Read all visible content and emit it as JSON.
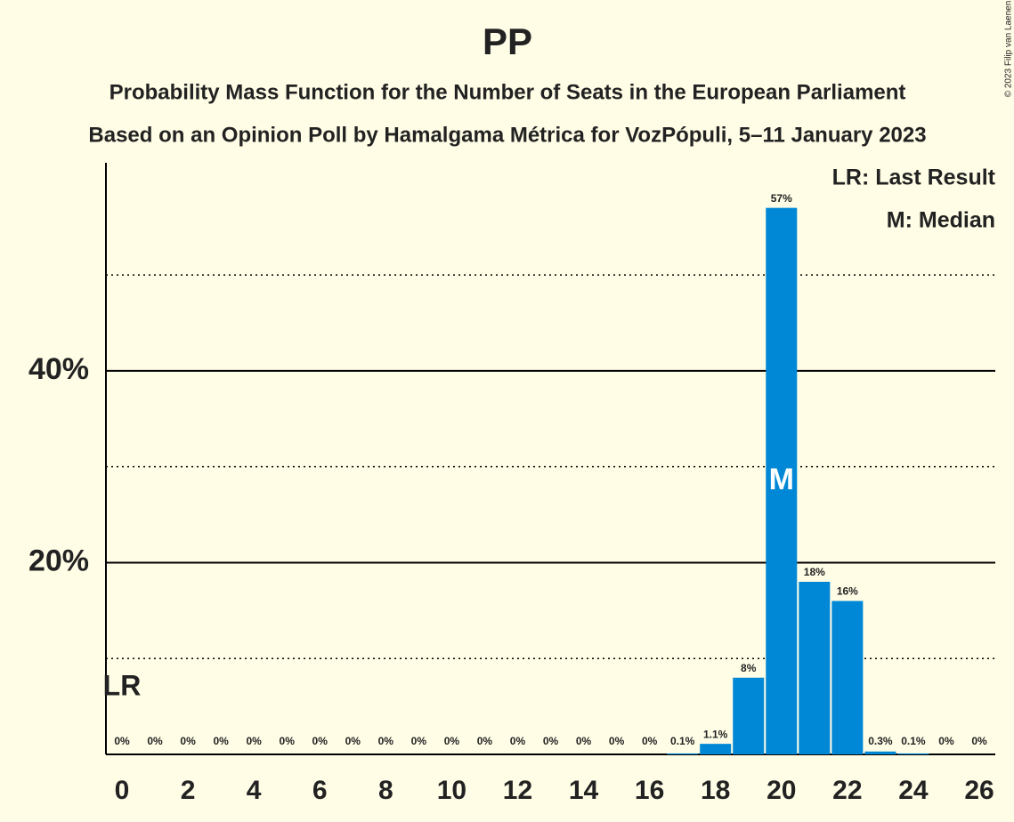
{
  "chart_data": {
    "type": "bar",
    "title": "PP",
    "subtitles": [
      "Probability Mass Function for the Number of Seats in the European Parliament",
      "Based on an Opinion Poll by Hamalgama Métrica for VozPópuli, 5–11 January 2023"
    ],
    "categories": [
      0,
      null,
      2,
      null,
      4,
      null,
      6,
      null,
      8,
      null,
      10,
      null,
      12,
      null,
      14,
      null,
      16,
      null,
      18,
      null,
      20,
      null,
      22,
      null,
      24,
      null,
      26
    ],
    "values": [
      0,
      0,
      0,
      0,
      0,
      0,
      0,
      0,
      0,
      0,
      0,
      0,
      0,
      0,
      0,
      0,
      0,
      0.1,
      1.1,
      8,
      57,
      18,
      16,
      0.3,
      0.1,
      0,
      0
    ],
    "value_labels": [
      "0%",
      "0%",
      "0%",
      "0%",
      "0%",
      "0%",
      "0%",
      "0%",
      "0%",
      "0%",
      "0%",
      "0%",
      "0%",
      "0%",
      "0%",
      "0%",
      "0%",
      "0.1%",
      "1.1%",
      "8%",
      "57%",
      "18%",
      "16%",
      "0.3%",
      "0.1%",
      "0%",
      "0%"
    ],
    "color": "#0088d6",
    "ylim": [
      0,
      61.7
    ],
    "yticks": [
      {
        "value": 20,
        "label": "20%"
      },
      {
        "value": 40,
        "label": "40%"
      }
    ],
    "minor_yticks": [
      10,
      30,
      50
    ],
    "last_result": 0,
    "last_result_label": "LR",
    "median": 20,
    "median_label": "M",
    "legend": [
      "LR: Last Result",
      "M: Median"
    ],
    "copyright": "© 2023 Filip van Laenen"
  }
}
